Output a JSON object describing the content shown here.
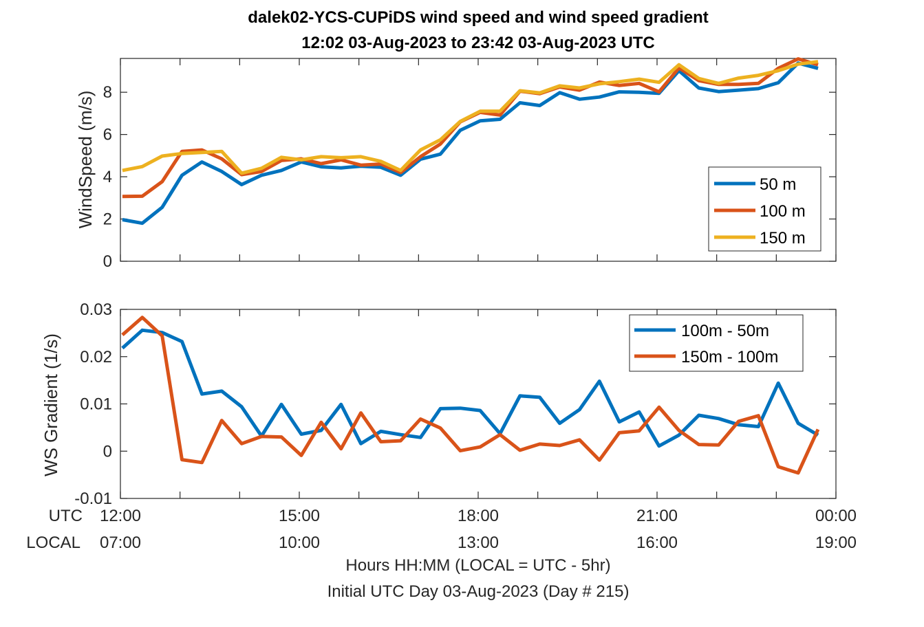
{
  "figure": {
    "title_line1": "dalek02-YCS-CUPiDS  wind speed and wind speed gradient",
    "title_line2": "12:02 03-Aug-2023 to 23:42 03-Aug-2023  UTC",
    "row_label_utc": "UTC",
    "row_label_local": "LOCAL",
    "utc_ticks": [
      "12:00",
      "15:00",
      "18:00",
      "21:00",
      "00:00"
    ],
    "local_ticks": [
      "07:00",
      "10:00",
      "13:00",
      "16:00",
      "19:00"
    ],
    "xlabel_line1": "Hours HH:MM  (LOCAL = UTC - 5hr)",
    "xlabel_line2": "Initial UTC Day 03-Aug-2023 (Day # 215)"
  },
  "chart_data": [
    {
      "type": "line",
      "ylabel": "WindSpeed (m/s)",
      "xlim": [
        12.0,
        24.0
      ],
      "ylim": [
        0,
        9.6
      ],
      "yticks": [
        0,
        2,
        4,
        6,
        8
      ],
      "ytick_labels": [
        "0",
        "2",
        "4",
        "6",
        "8"
      ],
      "xticks": [
        12,
        15,
        18,
        21,
        24
      ],
      "legend_position": "right",
      "grid": false,
      "x": [
        12.033,
        12.367,
        12.7,
        13.033,
        13.367,
        13.7,
        14.033,
        14.367,
        14.7,
        15.033,
        15.367,
        15.7,
        16.033,
        16.367,
        16.7,
        17.033,
        17.367,
        17.7,
        18.033,
        18.367,
        18.7,
        19.033,
        19.367,
        19.7,
        20.033,
        20.367,
        20.7,
        21.033,
        21.367,
        21.7,
        22.033,
        22.367,
        22.7,
        23.033,
        23.367,
        23.7
      ],
      "series": [
        {
          "name": "50 m",
          "color": "#0072BD",
          "values": [
            1.97,
            1.8,
            2.55,
            4.07,
            4.7,
            4.25,
            3.63,
            4.07,
            4.3,
            4.7,
            4.47,
            4.42,
            4.5,
            4.45,
            4.07,
            4.83,
            5.07,
            6.2,
            6.65,
            6.72,
            7.5,
            7.37,
            7.98,
            7.67,
            7.77,
            8.02,
            8.0,
            7.95,
            9.02,
            8.2,
            8.03,
            8.1,
            8.17,
            8.45,
            9.38,
            9.13
          ]
        },
        {
          "name": "100 m",
          "color": "#D95319",
          "values": [
            3.07,
            3.08,
            3.77,
            5.2,
            5.27,
            4.85,
            4.1,
            4.25,
            4.77,
            4.85,
            4.62,
            4.8,
            4.55,
            4.6,
            4.2,
            4.95,
            5.55,
            6.6,
            7.05,
            6.92,
            8.05,
            7.93,
            8.25,
            8.1,
            8.48,
            8.32,
            8.42,
            8.02,
            9.15,
            8.55,
            8.37,
            8.37,
            8.42,
            9.13,
            9.58,
            9.3
          ]
        },
        {
          "name": "150 m",
          "color": "#EDB120",
          "values": [
            4.3,
            4.48,
            4.98,
            5.1,
            5.15,
            5.2,
            4.17,
            4.4,
            4.92,
            4.8,
            4.95,
            4.9,
            4.95,
            4.73,
            4.3,
            5.27,
            5.75,
            6.62,
            7.1,
            7.1,
            8.07,
            7.97,
            8.3,
            8.2,
            8.4,
            8.5,
            8.62,
            8.47,
            9.3,
            8.65,
            8.42,
            8.67,
            8.8,
            9.02,
            9.33,
            9.45
          ]
        }
      ]
    },
    {
      "type": "line",
      "ylabel": "WS Gradient (1/s)",
      "xlim": [
        12.0,
        24.0
      ],
      "ylim": [
        -0.01,
        0.03
      ],
      "yticks": [
        -0.01,
        0,
        0.01,
        0.02,
        0.03
      ],
      "ytick_labels": [
        "-0.01",
        "0",
        "0.01",
        "0.02",
        "0.03"
      ],
      "xticks": [
        12,
        15,
        18,
        21,
        24
      ],
      "legend_position": "top-right",
      "grid": false,
      "x": [
        12.033,
        12.367,
        12.7,
        13.033,
        13.367,
        13.7,
        14.033,
        14.367,
        14.7,
        15.033,
        15.367,
        15.7,
        16.033,
        16.367,
        16.7,
        17.033,
        17.367,
        17.7,
        18.033,
        18.367,
        18.7,
        19.033,
        19.367,
        19.7,
        20.033,
        20.367,
        20.7,
        21.033,
        21.367,
        21.7,
        22.033,
        22.367,
        22.7,
        23.033,
        23.367,
        23.7
      ],
      "series": [
        {
          "name": "100m - 50m",
          "color": "#0072BD",
          "values": [
            0.0218,
            0.0256,
            0.0251,
            0.0232,
            0.0121,
            0.0127,
            0.0094,
            0.0032,
            0.0099,
            0.0036,
            0.0044,
            0.0099,
            0.0016,
            0.0042,
            0.0035,
            0.0029,
            0.009,
            0.0091,
            0.0086,
            0.0037,
            0.0117,
            0.0114,
            0.0059,
            0.0088,
            0.0148,
            0.0062,
            0.0083,
            0.0011,
            0.0034,
            0.0076,
            0.0069,
            0.0056,
            0.0052,
            0.0144,
            0.0059,
            0.0034
          ]
        },
        {
          "name": "150m - 100m",
          "color": "#D95319",
          "values": [
            0.0246,
            0.0283,
            0.0244,
            -0.0018,
            -0.0024,
            0.0065,
            0.0016,
            0.0031,
            0.003,
            -0.0009,
            0.0061,
            0.0005,
            0.0081,
            0.002,
            0.0022,
            0.0068,
            0.0049,
            0.0001,
            0.0009,
            0.0035,
            0.0002,
            0.0015,
            0.0012,
            0.0024,
            -0.0019,
            0.0039,
            0.0043,
            0.0093,
            0.0044,
            0.0014,
            0.0013,
            0.0063,
            0.0075,
            -0.0033,
            -0.0046,
            0.0046
          ]
        }
      ]
    }
  ]
}
